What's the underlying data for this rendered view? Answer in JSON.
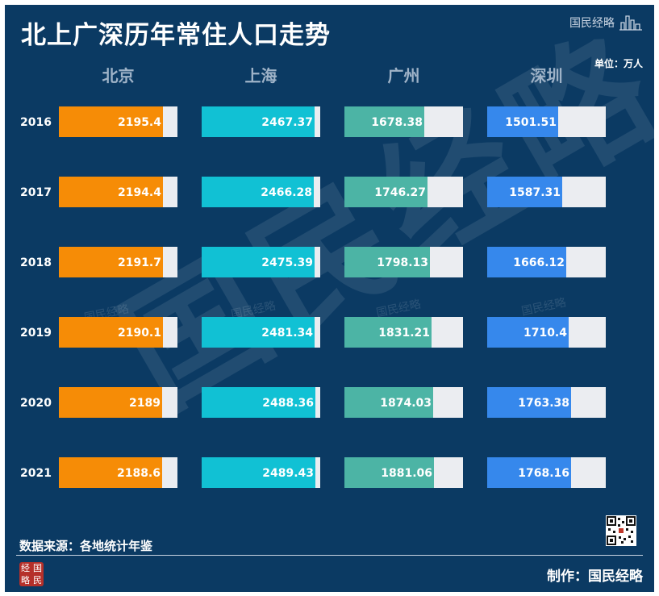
{
  "title": "北上广深历年常住人口走势",
  "brand": {
    "name": "国民经略",
    "seal_chars": [
      "经",
      "国",
      "略",
      "民"
    ]
  },
  "unit_label": "单位：万人",
  "source": "数据来源：各地统计年鉴",
  "credit": "制作：国民经略",
  "watermark": "国民经略",
  "colors": {
    "background": "#0b3a63",
    "track": "#ebedf1",
    "text": "#ffffff",
    "series": [
      "#f68c06",
      "#11c1d4",
      "#4cb4a5",
      "#3688ec"
    ]
  },
  "icons": {
    "qr": "qr-code-icon",
    "logo": "city-skyline-icon"
  },
  "chart_data": {
    "type": "bar",
    "orientation": "horizontal",
    "layout": "small-multiples",
    "categories": [
      "2016",
      "2017",
      "2018",
      "2019",
      "2020",
      "2021"
    ],
    "series": [
      {
        "name": "北京",
        "values": [
          2195.4,
          2194.4,
          2191.7,
          2190.1,
          2189,
          2188.6
        ],
        "labels": [
          "2195.4",
          "2194.4",
          "2191.7",
          "2190.1",
          "2189",
          "2188.6"
        ],
        "scale_max": 2505
      },
      {
        "name": "上海",
        "values": [
          2467.37,
          2466.28,
          2475.39,
          2481.34,
          2488.36,
          2489.43
        ],
        "labels": [
          "2467.37",
          "2466.28",
          "2475.39",
          "2481.34",
          "2488.36",
          "2489.43"
        ],
        "scale_max": 2600
      },
      {
        "name": "广州",
        "values": [
          1678.38,
          1746.27,
          1798.13,
          1831.21,
          1874.03,
          1881.06
        ],
        "labels": [
          "1678.38",
          "1746.27",
          "1798.13",
          "1831.21",
          "1874.03",
          "1881.06"
        ],
        "scale_max": 2500
      },
      {
        "name": "深圳",
        "values": [
          1501.51,
          1587.31,
          1666.12,
          1710.4,
          1763.38,
          1768.16
        ],
        "labels": [
          "1501.51",
          "1587.31",
          "1666.12",
          "1710.4",
          "1763.38",
          "1768.16"
        ],
        "scale_max": 2500
      }
    ],
    "legend": "column-headers",
    "grid": false
  }
}
